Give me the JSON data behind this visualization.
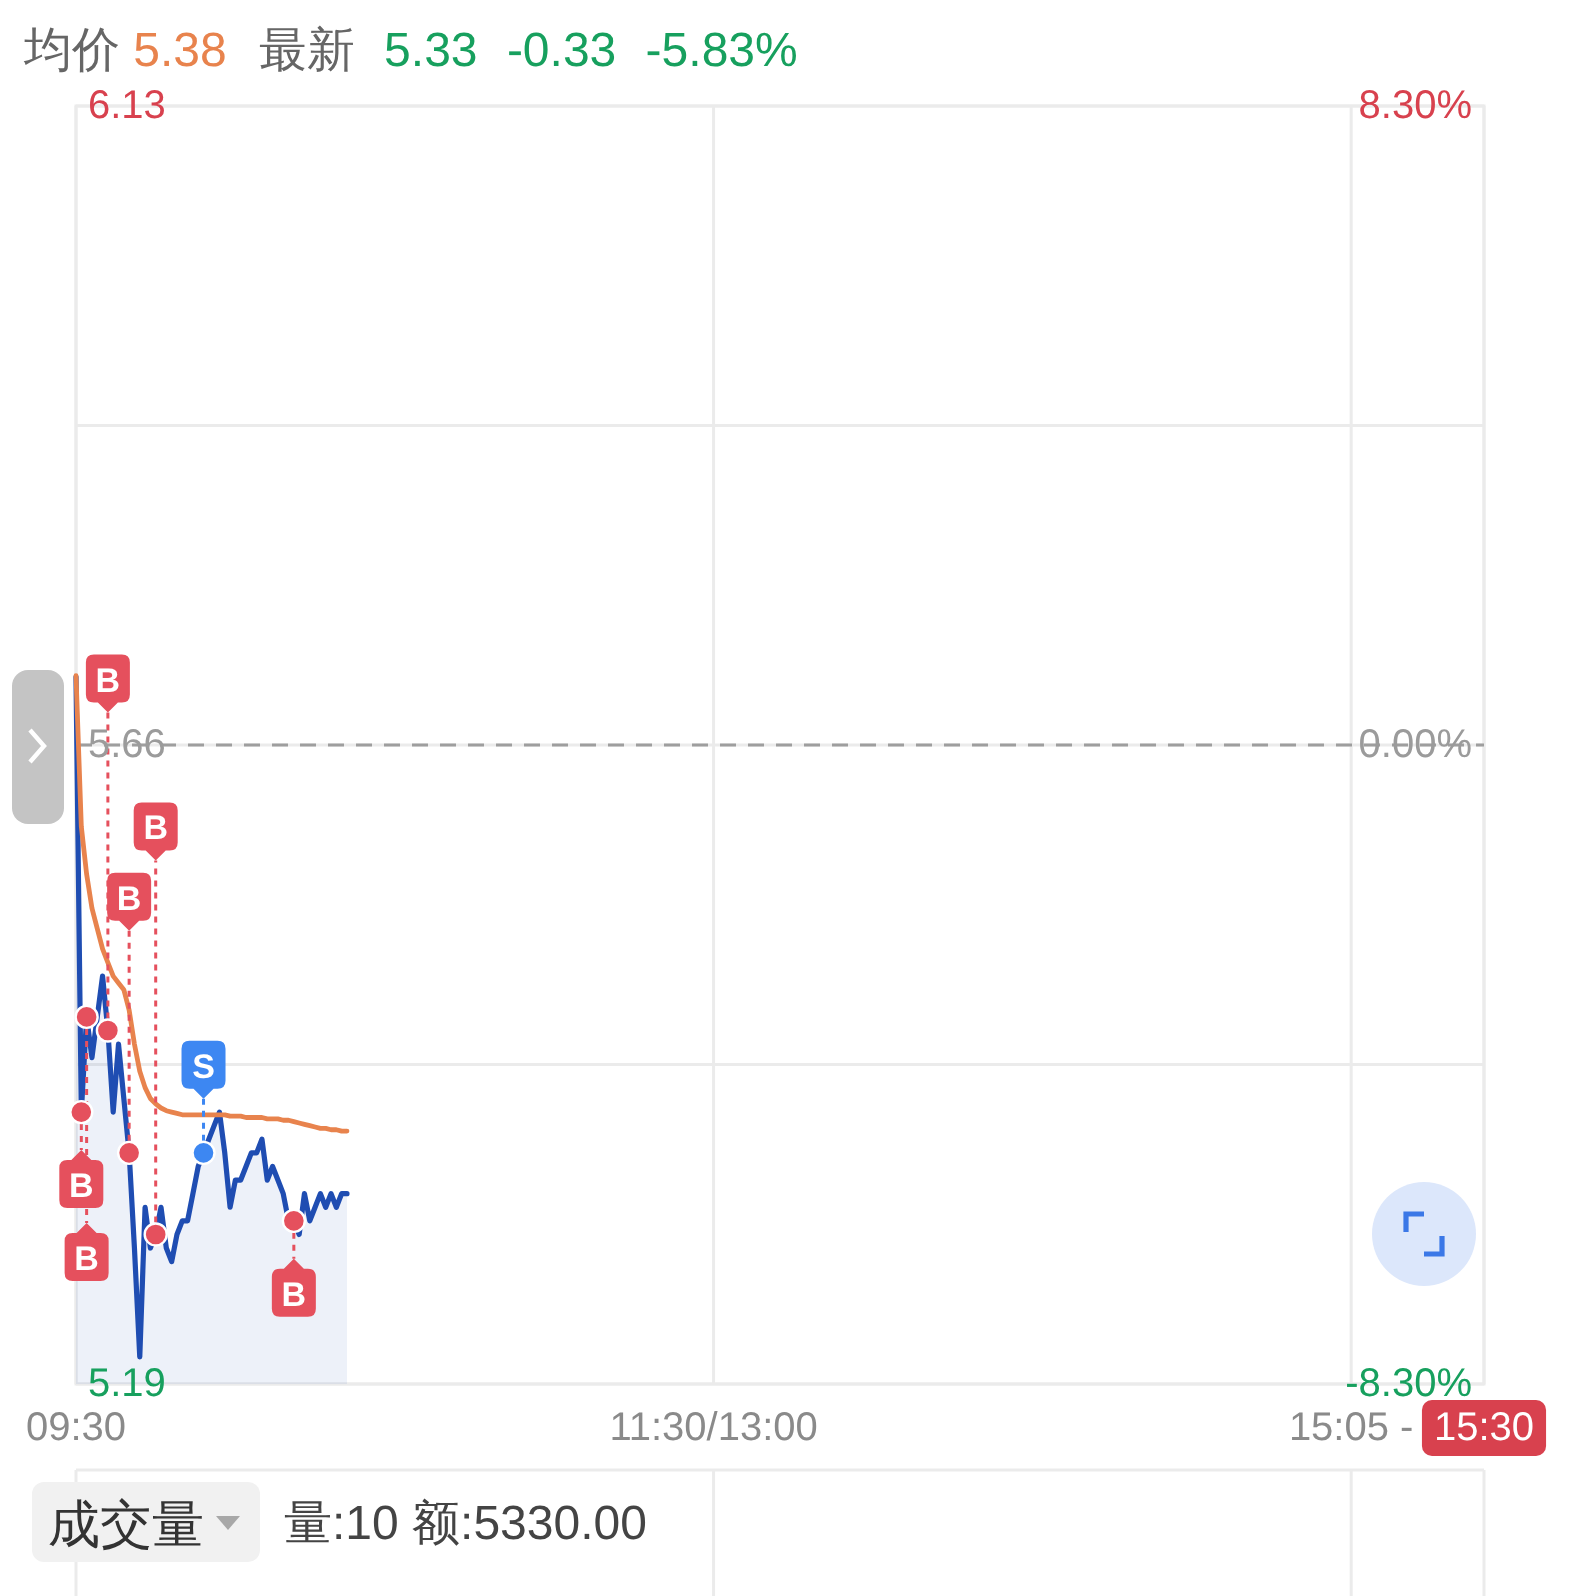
{
  "chart_data": {
    "type": "area",
    "title": "均价 5.38",
    "subtitle": "最新 5.33 -0.33 -5.83%",
    "categories": [
      "09:30",
      null,
      null,
      null,
      null,
      null,
      null,
      null,
      null,
      null,
      null,
      null,
      null,
      null,
      null,
      null,
      null,
      null,
      null,
      null,
      null,
      null,
      null,
      null,
      null,
      null,
      null,
      null,
      null,
      null,
      null,
      null,
      null,
      null,
      null,
      null,
      null,
      null,
      null,
      null,
      null,
      null,
      null,
      null,
      null,
      null,
      null,
      null,
      null,
      null,
      null,
      null,
      null,
      null,
      null,
      null,
      null,
      null,
      null,
      null,
      null,
      null,
      null,
      null,
      null,
      null,
      null,
      null,
      null,
      null,
      null,
      null,
      null,
      null,
      null,
      null,
      null,
      null,
      null,
      null,
      null,
      null,
      null,
      null,
      null,
      null,
      null,
      null,
      null,
      null,
      null,
      null,
      null,
      null,
      null,
      null,
      null,
      null,
      null,
      null,
      null,
      null,
      null,
      null,
      null,
      null,
      null,
      null,
      null,
      null,
      null,
      null,
      null,
      null,
      null,
      null,
      null,
      null,
      null,
      null,
      "11:30/13:00",
      null,
      null,
      null,
      null,
      null,
      null,
      null,
      null,
      null,
      null,
      null,
      null,
      null,
      null,
      null,
      null,
      null,
      null,
      null,
      null,
      null,
      null,
      null,
      null,
      null,
      null,
      null,
      null,
      null,
      null,
      null,
      null,
      null,
      null,
      null,
      null,
      null,
      null,
      null,
      null,
      null,
      null,
      null,
      null,
      null,
      null,
      null,
      null,
      null,
      null,
      null,
      null,
      null,
      null,
      null,
      null,
      null,
      null,
      null,
      null,
      null,
      null,
      null,
      null,
      null,
      null,
      null,
      null,
      null,
      null,
      null,
      null,
      null,
      null,
      null,
      null,
      null,
      null,
      null,
      null,
      null,
      null,
      null,
      null,
      null,
      null,
      null,
      null,
      null,
      null,
      null,
      null,
      null,
      null,
      null,
      null,
      null,
      null,
      null,
      null,
      null,
      null,
      null,
      null,
      null,
      null,
      null,
      null,
      null,
      null,
      null,
      null,
      null,
      null,
      null,
      null,
      null,
      null,
      null,
      "15:05 -",
      null,
      null,
      null,
      null,
      null,
      null,
      null,
      null,
      null,
      null,
      null,
      null,
      null,
      null,
      null,
      null,
      null,
      null,
      null,
      null,
      null,
      null,
      null,
      null,
      "15:30"
    ],
    "series": [
      {
        "color": "#1f4db2",
        "values": [
          5.71,
          5.39,
          5.46,
          5.43,
          5.46,
          5.49,
          5.45,
          5.39,
          5.44,
          5.4,
          5.36,
          5.29,
          5.21,
          5.32,
          5.29,
          5.3,
          5.32,
          5.29,
          5.28,
          5.3,
          5.31,
          5.31,
          5.33,
          5.35,
          5.36,
          5.37,
          5.38,
          5.39,
          5.36,
          5.32,
          5.34,
          5.34,
          5.35,
          5.36,
          5.36,
          5.37,
          5.34,
          5.35,
          5.34,
          5.33,
          5.31,
          5.31,
          5.3,
          5.33,
          5.31,
          5.32,
          5.33,
          5.32,
          5.33,
          5.32,
          5.33,
          5.33,
          null,
          null,
          null,
          null,
          null,
          null,
          null,
          null,
          null,
          null,
          null,
          null,
          null,
          null,
          null,
          null,
          null,
          null,
          null,
          null,
          null,
          null,
          null,
          null,
          null,
          null,
          null,
          null,
          null,
          null,
          null,
          null,
          null,
          null,
          null,
          null,
          null,
          null,
          null,
          null,
          null,
          null,
          null,
          null,
          null,
          null,
          null,
          null,
          null,
          null,
          null,
          null,
          null,
          null,
          null,
          null,
          null,
          null,
          null,
          null,
          null,
          null,
          null,
          null,
          null,
          null,
          null,
          null,
          null,
          null,
          null,
          null,
          null,
          null,
          null,
          null,
          null,
          null,
          null,
          null,
          null,
          null,
          null,
          null,
          null,
          null,
          null,
          null,
          null,
          null,
          null,
          null,
          null,
          null,
          null,
          null,
          null,
          null,
          null,
          null,
          null,
          null,
          null,
          null,
          null,
          null,
          null,
          null,
          null,
          null,
          null,
          null,
          null,
          null,
          null,
          null,
          null,
          null,
          null,
          null,
          null,
          null,
          null,
          null,
          null,
          null,
          null,
          null,
          null,
          null,
          null,
          null,
          null,
          null,
          null,
          null,
          null,
          null,
          null,
          null,
          null,
          null,
          null,
          null,
          null,
          null,
          null,
          null,
          null,
          null,
          null,
          null,
          null,
          null,
          null,
          null,
          null,
          null,
          null,
          null,
          null,
          null,
          null,
          null,
          null,
          null,
          null,
          null,
          null,
          null,
          null,
          null,
          null,
          null,
          null,
          null,
          null,
          null,
          null,
          null,
          null,
          null,
          null,
          null,
          null,
          null,
          null,
          null,
          null,
          null,
          null,
          null,
          null,
          null,
          null,
          null,
          null,
          null,
          null,
          null,
          null,
          null,
          null,
          null,
          null,
          null,
          null,
          null,
          null,
          null,
          null,
          null,
          null,
          null
        ]
      },
      {
        "type": "line",
        "color": "#e8834d",
        "values": [
          5.711,
          5.6,
          5.565,
          5.54,
          5.525,
          5.51,
          5.5,
          5.49,
          5.485,
          5.48,
          5.465,
          5.44,
          5.42,
          5.408,
          5.4,
          5.396,
          5.393,
          5.391,
          5.39,
          5.389,
          5.388,
          5.388,
          5.388,
          5.388,
          5.388,
          5.388,
          5.388,
          5.388,
          5.388,
          5.387,
          5.387,
          5.387,
          5.386,
          5.386,
          5.386,
          5.386,
          5.385,
          5.385,
          5.385,
          5.384,
          5.384,
          5.383,
          5.382,
          5.381,
          5.38,
          5.379,
          5.378,
          5.378,
          5.377,
          5.377,
          5.376,
          5.376,
          null,
          null,
          null,
          null,
          null,
          null,
          null,
          null,
          null,
          null,
          null,
          null,
          null,
          null,
          null,
          null,
          null,
          null,
          null,
          null,
          null,
          null,
          null,
          null,
          null,
          null,
          null,
          null,
          null,
          null,
          null,
          null,
          null,
          null,
          null,
          null,
          null,
          null,
          null,
          null,
          null,
          null,
          null,
          null,
          null,
          null,
          null,
          null,
          null,
          null,
          null,
          null,
          null,
          null,
          null,
          null,
          null,
          null,
          null,
          null,
          null,
          null,
          null,
          null,
          null,
          null,
          null,
          null,
          null,
          null,
          null,
          null,
          null,
          null,
          null,
          null,
          null,
          null,
          null,
          null,
          null,
          null,
          null,
          null,
          null,
          null,
          null,
          null,
          null,
          null,
          null,
          null,
          null,
          null,
          null,
          null,
          null,
          null,
          null,
          null,
          null,
          null,
          null,
          null,
          null,
          null,
          null,
          null,
          null,
          null,
          null,
          null,
          null,
          null,
          null,
          null,
          null,
          null,
          null,
          null,
          null,
          null,
          null,
          null,
          null,
          null,
          null,
          null,
          null,
          null,
          null,
          null,
          null,
          null,
          null,
          null,
          null,
          null,
          null,
          null,
          null,
          null,
          null,
          null,
          null,
          null,
          null,
          null,
          null,
          null,
          null,
          null,
          null,
          null,
          null,
          null,
          null,
          null,
          null,
          null,
          null,
          null,
          null,
          null,
          null,
          null,
          null,
          null,
          null,
          null,
          null,
          null,
          null,
          null,
          null,
          null,
          null,
          null,
          null,
          null,
          null,
          null,
          null,
          null,
          null,
          null,
          null,
          null,
          null,
          null,
          null,
          null,
          null,
          null,
          null,
          null,
          null,
          null,
          null,
          null,
          null,
          null,
          null,
          null,
          null,
          null,
          null,
          null,
          null,
          null,
          null,
          null,
          null,
          null
        ]
      },
      {
        "type": "scatter",
        "name": "B",
        "color": "#e5505d",
        "marker": "circle",
        "values": [
          null,
          5.39,
          5.46,
          null,
          null,
          null,
          5.45,
          null,
          null,
          null,
          5.36,
          null,
          null,
          null,
          null,
          5.3,
          null,
          null,
          null,
          null,
          null,
          null,
          null,
          null,
          null,
          null,
          null,
          null,
          null,
          null,
          null,
          null,
          null,
          null,
          null,
          null,
          null,
          null,
          null,
          null,
          null,
          5.31,
          null,
          null,
          null,
          null,
          null,
          null,
          null,
          null,
          null,
          null,
          null,
          null,
          null,
          null,
          null,
          null,
          null,
          null,
          null,
          null,
          null,
          null,
          null,
          null,
          null,
          null,
          null,
          null,
          null,
          null,
          null,
          null,
          null,
          null,
          null,
          null,
          null,
          null,
          null,
          null,
          null,
          null,
          null,
          null,
          null,
          null,
          null,
          null,
          null,
          null,
          null,
          null,
          null,
          null,
          null,
          null,
          null,
          null,
          null,
          null,
          null,
          null,
          null,
          null,
          null,
          null,
          null,
          null,
          null,
          null,
          null,
          null,
          null,
          null,
          null,
          null,
          null,
          null,
          null,
          null,
          null,
          null,
          null,
          null,
          null,
          null,
          null,
          null,
          null,
          null,
          null,
          null,
          null,
          null,
          null,
          null,
          null,
          null,
          null,
          null,
          null,
          null,
          null,
          null,
          null,
          null,
          null,
          null,
          null,
          null,
          null,
          null,
          null,
          null,
          null,
          null,
          null,
          null,
          null,
          null,
          null,
          null,
          null,
          null,
          null,
          null,
          null,
          null,
          null,
          null,
          null,
          null,
          null,
          null,
          null,
          null,
          null,
          null,
          null,
          null,
          null,
          null,
          null,
          null,
          null,
          null,
          null,
          null,
          null,
          null,
          null,
          null,
          null,
          null,
          null,
          null,
          null,
          null,
          null,
          null,
          null,
          null,
          null,
          null,
          null,
          null,
          null,
          null,
          null,
          null,
          null,
          null,
          null,
          null,
          null,
          null,
          null,
          null,
          null,
          null,
          null,
          null,
          null,
          null,
          null,
          null,
          null,
          null,
          null,
          null,
          null,
          null,
          null,
          null,
          null,
          null,
          null,
          null,
          null,
          null,
          null,
          null,
          null,
          null,
          null,
          null,
          null,
          null,
          null,
          null,
          null,
          null,
          null,
          null,
          null,
          null,
          null,
          null,
          null,
          null,
          null,
          null,
          null,
          null
        ]
      },
      {
        "type": "scatter",
        "name": "S",
        "color": "#3d87f2",
        "marker": "circle",
        "values": [
          null,
          null,
          null,
          null,
          null,
          null,
          null,
          null,
          null,
          null,
          null,
          null,
          null,
          null,
          null,
          null,
          null,
          null,
          null,
          null,
          null,
          null,
          null,
          null,
          5.36,
          null,
          null,
          null,
          null,
          null,
          null,
          null,
          null,
          null,
          null,
          null,
          null,
          null,
          null,
          null,
          null,
          null,
          null,
          null,
          null,
          null,
          null,
          null,
          null,
          null,
          null,
          null,
          null,
          null,
          null,
          null,
          null,
          null,
          null,
          null,
          null,
          null,
          null,
          null,
          null,
          null,
          null,
          null,
          null,
          null,
          null,
          null,
          null,
          null,
          null,
          null,
          null,
          null,
          null,
          null,
          null,
          null,
          null,
          null,
          null,
          null,
          null,
          null,
          null,
          null,
          null,
          null,
          null,
          null,
          null,
          null,
          null,
          null,
          null,
          null,
          null,
          null,
          null,
          null,
          null,
          null,
          null,
          null,
          null,
          null,
          null,
          null,
          null,
          null,
          null,
          null,
          null,
          null,
          null,
          null,
          null,
          null,
          null,
          null,
          null,
          null,
          null,
          null,
          null,
          null,
          null,
          null,
          null,
          null,
          null,
          null,
          null,
          null,
          null,
          null,
          null,
          null,
          null,
          null,
          null,
          null,
          null,
          null,
          null,
          null,
          null,
          null,
          null,
          null,
          null,
          null,
          null,
          null,
          null,
          null,
          null,
          null,
          null,
          null,
          null,
          null,
          null,
          null,
          null,
          null,
          null,
          null,
          null,
          null,
          null,
          null,
          null,
          null,
          null,
          null,
          null,
          null,
          null,
          null,
          null,
          null,
          null,
          null,
          null,
          null,
          null,
          null,
          null,
          null,
          null,
          null,
          null,
          null,
          null,
          null,
          null,
          null,
          null,
          null,
          null,
          null,
          null,
          null,
          null,
          null,
          null,
          null,
          null,
          null,
          null,
          null,
          null,
          null,
          null,
          null,
          null,
          null,
          null,
          null,
          null,
          null,
          null,
          null,
          null,
          null,
          null,
          null,
          null,
          null,
          null,
          null,
          null,
          null,
          null,
          null,
          null,
          null,
          null,
          null,
          null,
          null,
          null,
          null,
          null,
          null,
          null,
          null,
          null,
          null,
          null,
          null,
          null,
          null,
          null,
          null,
          null,
          null,
          null,
          null,
          null,
          null
        ]
      }
    ],
    "ylim": [
      5.19,
      6.13
    ],
    "yticks": [
      6.13,
      {
        "value": 5.895,
        "label": null
      },
      5.66,
      {
        "value": 5.425,
        "label": null
      },
      5.19
    ],
    "y2lim": [
      -8.3,
      8.3
    ],
    "y2ticks": [
      {
        "value": 8.3,
        "label": "8.30%"
      },
      {
        "value": 0,
        "label": "0.00%"
      },
      {
        "value": -8.3,
        "label": "-8.30%"
      }
    ],
    "ref_lines": [
      {
        "axis": "y",
        "value": 5.66,
        "color": "#9e9e9e",
        "line_style": "dashed"
      }
    ],
    "grid": true,
    "annotations": [
      "成交量",
      "量:10 额:5330.00"
    ]
  }
}
